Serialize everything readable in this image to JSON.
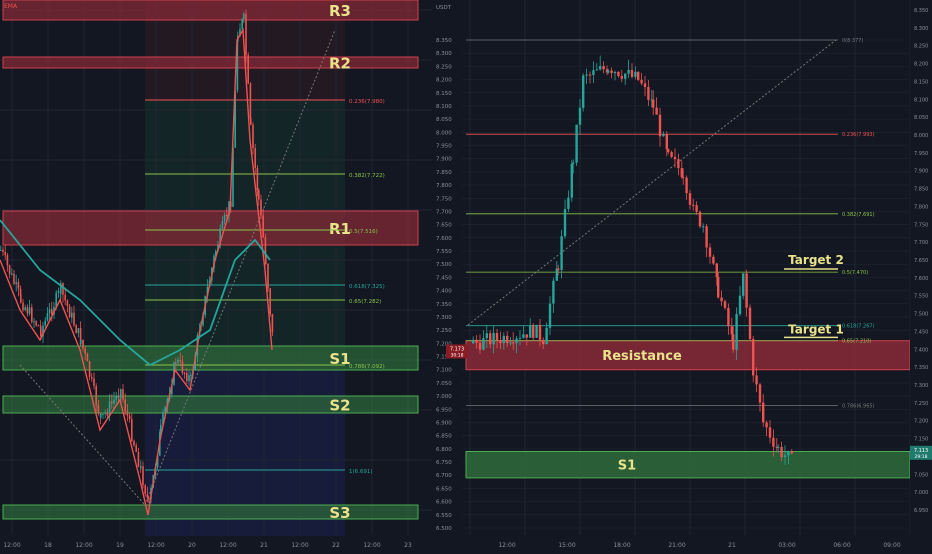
{
  "colors": {
    "background": "#131722",
    "grid": "#1f2533",
    "bull": "#26a69a",
    "bear": "#ef5350",
    "resistance_zone": "#8a2a36",
    "support_zone": "#2e6b3a",
    "zone_text": "#e9e28a",
    "fib_green": "#8bc34a",
    "fib_teal": "#26a69a",
    "fib_red": "#ef5350",
    "axis_text": "#8a8f9c",
    "price_tag": "#8a1c24",
    "price_tag_right": "#1f7a6e",
    "target_text": "#e9e28a",
    "ema_fast": "#ef5350",
    "ema_slow": "#26a69a"
  },
  "left_chart": {
    "legend": "EMA",
    "x_tick_labels": [
      "12:00",
      "18",
      "12:00",
      "19",
      "12:00",
      "20",
      "12:00",
      "21",
      "12:00",
      "22",
      "12:00",
      "23"
    ],
    "zone_labels": [
      "R3",
      "R2",
      "R1",
      "S1",
      "S2",
      "S3"
    ],
    "fib_labels": [
      "0.236(7.980)",
      "0.382(7.722)",
      "0.5(7.516)",
      "0.618(7.325)",
      "0.65(7.282)",
      "0.786(7.092)",
      "1(6.691)"
    ]
  },
  "right_chart": {
    "currency": "USDT",
    "y_tick_labels": [
      "8.350",
      "8.300",
      "8.250",
      "8.200",
      "8.150",
      "8.100",
      "8.050",
      "8.000",
      "7.950",
      "7.900",
      "7.850",
      "7.800",
      "7.750",
      "7.700",
      "7.650",
      "7.600",
      "7.550",
      "7.500",
      "7.450",
      "7.400",
      "7.350",
      "7.300",
      "7.250",
      "7.200",
      "7.150",
      "7.100",
      "7.050",
      "7.000",
      "6.950",
      "6.900",
      "6.850",
      "6.800",
      "6.750",
      "6.700",
      "6.650",
      "6.600",
      "6.550",
      "6.500"
    ],
    "x_tick_labels": [
      "12:00",
      "15:00",
      "18:00",
      "21:00",
      "21",
      "03:00",
      "06:00",
      "09:00"
    ],
    "zone_labels": [
      "Resistance",
      "S1"
    ],
    "target_labels": [
      "Target 2",
      "Target 1"
    ],
    "fib_labels": [
      "0(8.377)",
      "0.236(7.993)",
      "0.382(7.691)",
      "0.5(7.470)",
      "0.618(7.267)",
      "0.65(7.210)",
      "0.786(6.965)"
    ],
    "price_tag": "7.173",
    "price_tag_sub": "30:18"
  },
  "far_right_axis": {
    "y_tick_labels": [
      "8.350",
      "8.300",
      "8.250",
      "8.200",
      "8.150",
      "8.100",
      "8.050",
      "8.000",
      "7.950",
      "7.900",
      "7.850",
      "7.800",
      "7.750",
      "7.700",
      "7.650",
      "7.600",
      "7.550",
      "7.500",
      "7.450",
      "7.400",
      "7.350",
      "7.300",
      "7.250",
      "7.200",
      "7.150",
      "7.100",
      "7.050",
      "7.000",
      "6.950"
    ],
    "price_tag": "7.113",
    "price_tag_sub": "29:18"
  },
  "chart_data": [
    {
      "type": "candlestick",
      "title": "",
      "series": [
        {
          "name": "EMA",
          "type": "line"
        }
      ],
      "zones": [
        {
          "label": "R3",
          "kind": "resistance"
        },
        {
          "label": "R2",
          "kind": "resistance"
        },
        {
          "label": "R1",
          "kind": "resistance"
        },
        {
          "label": "S1",
          "kind": "support"
        },
        {
          "label": "S2",
          "kind": "support"
        },
        {
          "label": "S3",
          "kind": "support"
        }
      ],
      "fib_levels": [
        {
          "ratio": 0.236,
          "price": 7.98
        },
        {
          "ratio": 0.382,
          "price": 7.722
        },
        {
          "ratio": 0.5,
          "price": 7.516
        },
        {
          "ratio": 0.618,
          "price": 7.325
        },
        {
          "ratio": 0.65,
          "price": 7.282
        },
        {
          "ratio": 0.786,
          "price": 7.092
        },
        {
          "ratio": 1,
          "price": 6.691
        }
      ],
      "grid": true
    },
    {
      "type": "candlestick",
      "title": "",
      "ylabel": "USDT",
      "ylim": [
        6.5,
        8.375
      ],
      "zones": [
        {
          "label": "Resistance",
          "low": 7.1,
          "high": 7.2
        },
        {
          "label": "S1",
          "low": 6.69,
          "high": 6.79
        }
      ],
      "targets": [
        {
          "label": "Target 2",
          "price": 7.482
        },
        {
          "label": "Target 1",
          "price": 7.2
        }
      ],
      "fib_levels": [
        {
          "ratio": 0,
          "price": 8.377
        },
        {
          "ratio": 0.236,
          "price": 7.993
        },
        {
          "ratio": 0.382,
          "price": 7.691
        },
        {
          "ratio": 0.5,
          "price": 7.47
        },
        {
          "ratio": 0.618,
          "price": 7.267
        },
        {
          "ratio": 0.65,
          "price": 7.21
        },
        {
          "ratio": 0.786,
          "price": 6.965
        }
      ],
      "last_price": 7.173,
      "grid": true
    }
  ]
}
